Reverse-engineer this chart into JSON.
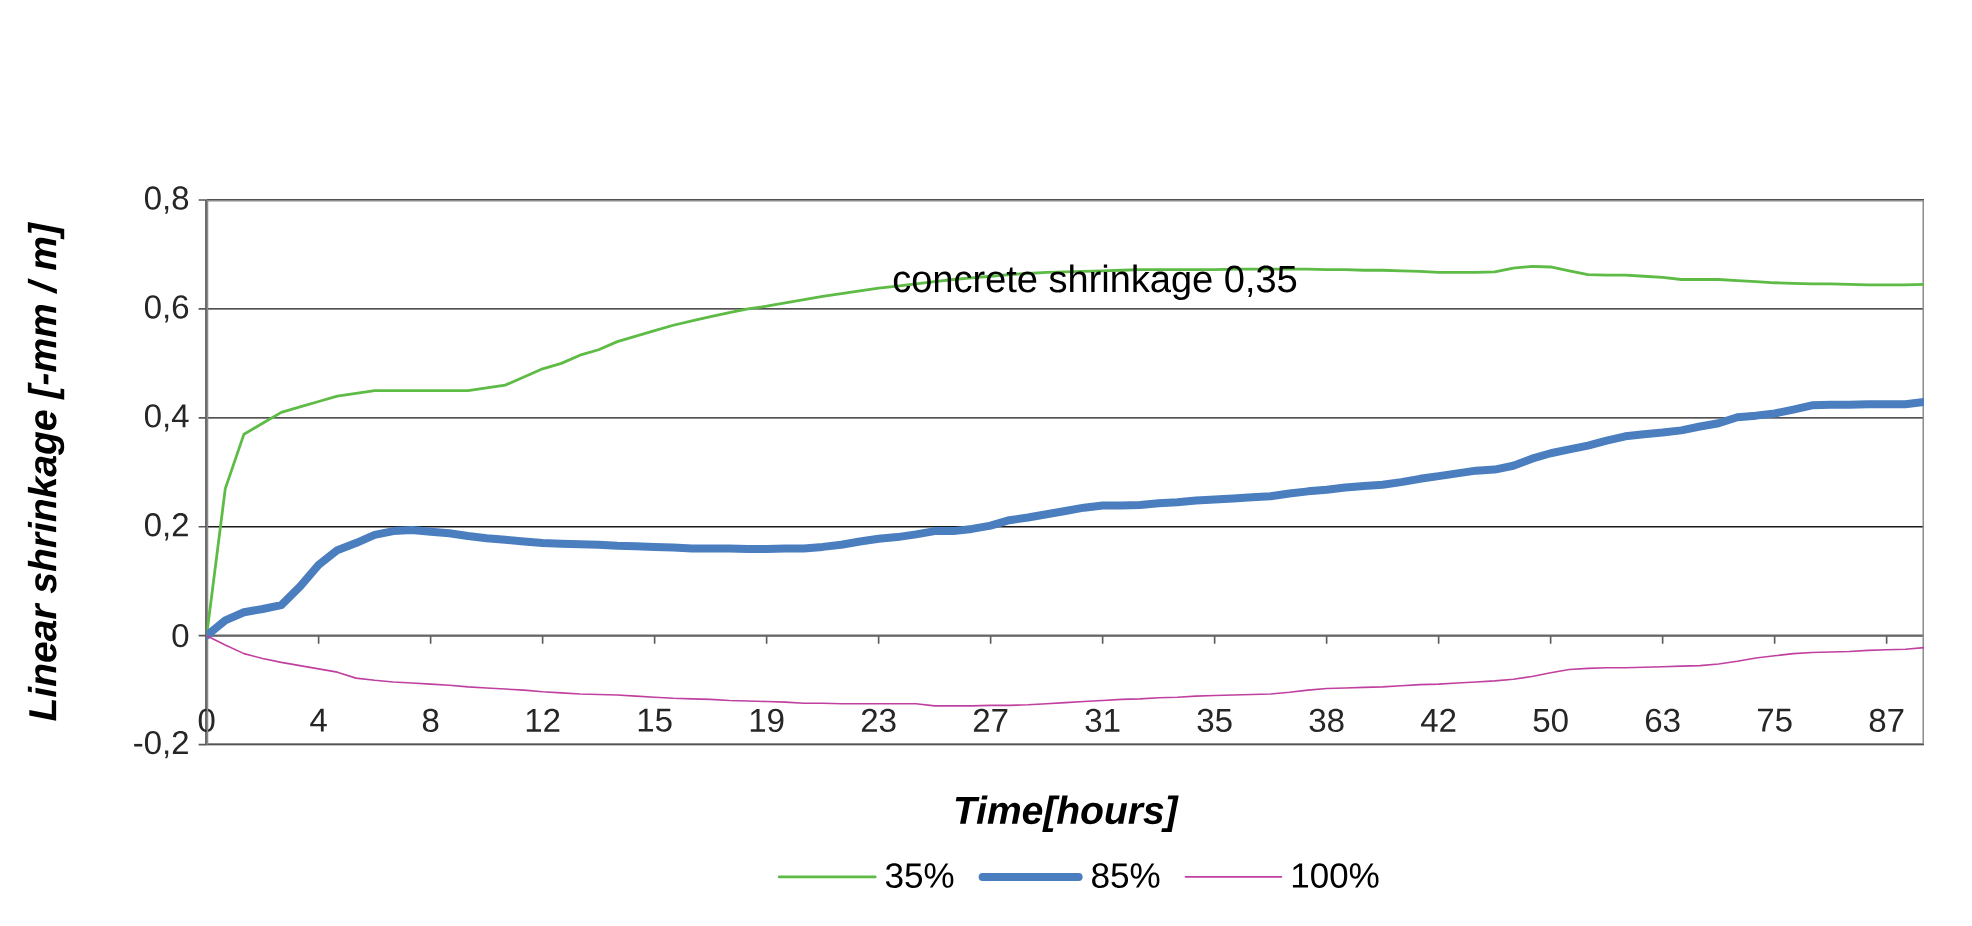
{
  "chart_data": {
    "type": "line",
    "xlabel": "Time[hours]",
    "ylabel": "Linear shrinkage [-mm / m]",
    "annotations": [
      "concrete shrinkage 0,35"
    ],
    "categories": [
      "0",
      null,
      null,
      null,
      null,
      null,
      "4",
      null,
      null,
      null,
      null,
      null,
      "8",
      null,
      null,
      null,
      null,
      null,
      "12",
      null,
      null,
      null,
      null,
      null,
      "15",
      null,
      null,
      null,
      null,
      null,
      "19",
      null,
      null,
      null,
      null,
      null,
      "23",
      null,
      null,
      null,
      null,
      null,
      "27",
      null,
      null,
      null,
      null,
      null,
      "31",
      null,
      null,
      null,
      null,
      null,
      "35",
      null,
      null,
      null,
      null,
      null,
      "38",
      null,
      null,
      null,
      null,
      null,
      "42",
      null,
      null,
      null,
      null,
      null,
      "50",
      null,
      null,
      null,
      null,
      null,
      "63",
      null,
      null,
      null,
      null,
      null,
      "75",
      null,
      null,
      null,
      null,
      null,
      "87",
      null,
      null
    ],
    "ylim": [
      -0.2,
      0.8
    ],
    "yticks": [
      {
        "value": -0.2,
        "label": "-0,2"
      },
      0,
      {
        "value": 0.2,
        "label": "0,2"
      },
      {
        "value": 0.4,
        "label": "0,4"
      },
      {
        "value": 0.6,
        "label": "0,6"
      },
      {
        "value": 0.8,
        "label": "0,8"
      }
    ],
    "grid": "y",
    "legend": "bottom",
    "series": [
      {
        "name": "35%",
        "color": "#5dbb46",
        "values": [
          0,
          0.27,
          0.37,
          0.39,
          0.41,
          0.42,
          0.43,
          0.44,
          0.445,
          0.45,
          0.45,
          0.45,
          0.45,
          0.45,
          0.45,
          0.455,
          0.46,
          0.475,
          0.49,
          0.5,
          0.515,
          0.525,
          0.54,
          0.55,
          0.56,
          0.57,
          0.578,
          0.586,
          0.593,
          0.6,
          0.605,
          0.611,
          0.617,
          0.623,
          0.628,
          0.633,
          0.638,
          0.642,
          0.646,
          0.65,
          0.654,
          0.657,
          0.66,
          0.663,
          0.665,
          0.667,
          0.668,
          0.669,
          0.67,
          0.671,
          0.672,
          0.672,
          0.672,
          0.672,
          0.672,
          0.673,
          0.673,
          0.673,
          0.673,
          0.673,
          0.672,
          0.672,
          0.671,
          0.671,
          0.67,
          0.669,
          0.667,
          0.667,
          0.667,
          0.668,
          0.675,
          0.678,
          0.677,
          0.67,
          0.663,
          0.662,
          0.662,
          0.66,
          0.658,
          0.654,
          0.654,
          0.654,
          0.652,
          0.65,
          0.648,
          0.647,
          0.646,
          0.646,
          0.645,
          0.644,
          0.644,
          0.644,
          0.645
        ]
      },
      {
        "name": "85%",
        "color": "#4a7ebf",
        "values": [
          0,
          0.028,
          0.043,
          0.049,
          0.056,
          0.09,
          0.13,
          0.157,
          0.17,
          0.185,
          0.192,
          0.194,
          0.191,
          0.188,
          0.183,
          0.179,
          0.176,
          0.173,
          0.17,
          0.169,
          0.168,
          0.167,
          0.165,
          0.164,
          0.163,
          0.162,
          0.16,
          0.16,
          0.16,
          0.159,
          0.159,
          0.16,
          0.16,
          0.163,
          0.167,
          0.173,
          0.178,
          0.181,
          0.186,
          0.192,
          0.192,
          0.196,
          0.202,
          0.212,
          0.217,
          0.223,
          0.229,
          0.235,
          0.239,
          0.239,
          0.24,
          0.243,
          0.245,
          0.248,
          0.25,
          0.252,
          0.254,
          0.256,
          0.261,
          0.265,
          0.268,
          0.272,
          0.275,
          0.277,
          0.282,
          0.288,
          0.293,
          0.298,
          0.303,
          0.305,
          0.312,
          0.325,
          0.335,
          0.342,
          0.349,
          0.358,
          0.366,
          0.37,
          0.373,
          0.377,
          0.384,
          0.39,
          0.401,
          0.404,
          0.408,
          0.415,
          0.423,
          0.424,
          0.424,
          0.425,
          0.425,
          0.425,
          0.429
        ]
      },
      {
        "name": "100%",
        "color": "#c040a0",
        "values": [
          0,
          -0.017,
          -0.033,
          -0.042,
          -0.049,
          -0.055,
          -0.061,
          -0.067,
          -0.078,
          -0.082,
          -0.085,
          -0.087,
          -0.089,
          -0.091,
          -0.094,
          -0.096,
          -0.098,
          -0.1,
          -0.103,
          -0.105,
          -0.107,
          -0.108,
          -0.109,
          -0.111,
          -0.113,
          -0.115,
          -0.116,
          -0.117,
          -0.119,
          -0.12,
          -0.121,
          -0.122,
          -0.124,
          -0.124,
          -0.125,
          -0.125,
          -0.125,
          -0.125,
          -0.125,
          -0.129,
          -0.129,
          -0.129,
          -0.128,
          -0.128,
          -0.127,
          -0.125,
          -0.123,
          -0.121,
          -0.119,
          -0.117,
          -0.116,
          -0.114,
          -0.113,
          -0.111,
          -0.11,
          -0.109,
          -0.108,
          -0.107,
          -0.104,
          -0.1,
          -0.097,
          -0.096,
          -0.095,
          -0.094,
          -0.092,
          -0.09,
          -0.089,
          -0.087,
          -0.085,
          -0.083,
          -0.08,
          -0.075,
          -0.068,
          -0.062,
          -0.06,
          -0.059,
          -0.059,
          -0.058,
          -0.057,
          -0.056,
          -0.055,
          -0.052,
          -0.047,
          -0.041,
          -0.037,
          -0.033,
          -0.031,
          -0.03,
          -0.029,
          -0.027,
          -0.026,
          -0.025,
          -0.022
        ]
      }
    ]
  }
}
